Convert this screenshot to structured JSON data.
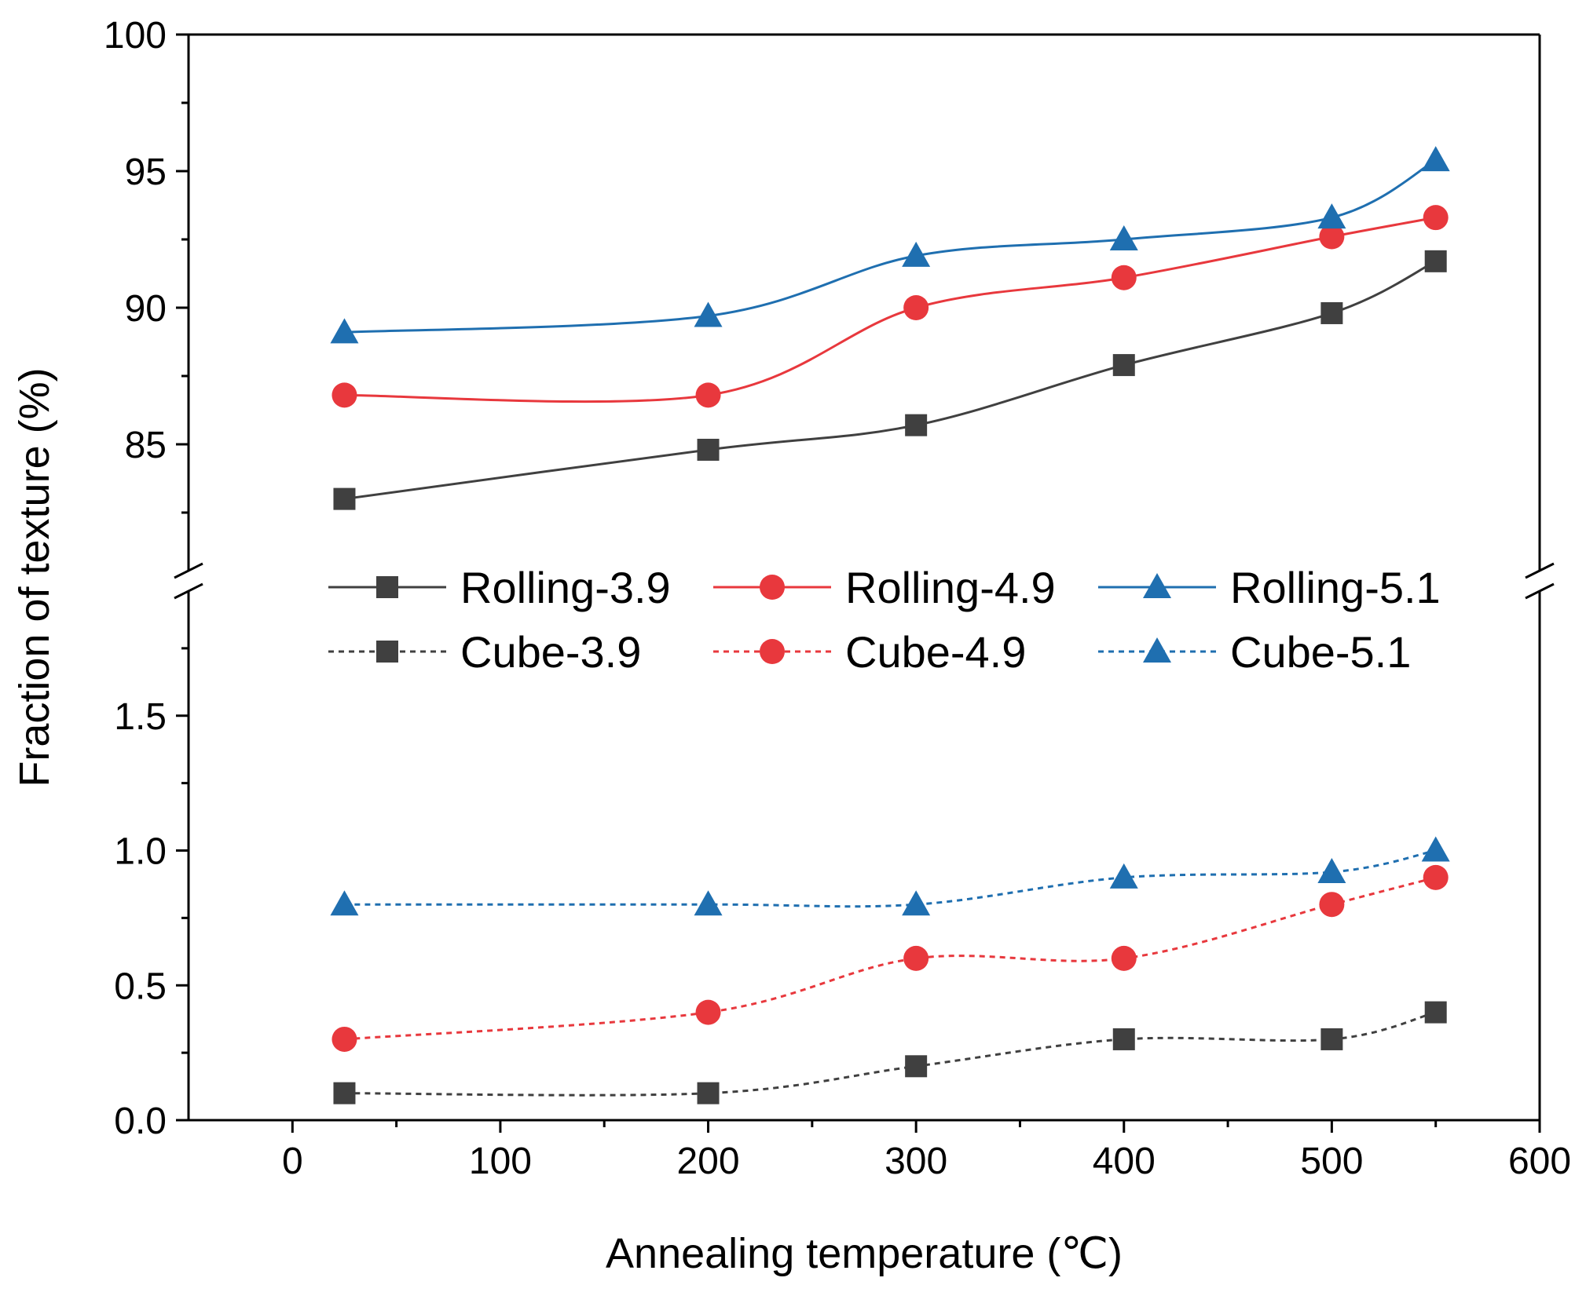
{
  "chart_data": {
    "type": "line",
    "xlabel": "Annealing temperature (℃)",
    "ylabel": "Fraction of texture (%)",
    "xlim": [
      -50,
      600
    ],
    "xticks": [
      "0",
      "100",
      "200",
      "300",
      "400",
      "500",
      "600"
    ],
    "xtick_values": [
      0,
      100,
      200,
      300,
      400,
      500,
      600
    ],
    "y_break": {
      "upper_segment": {
        "ylim": [
          80,
          100
        ],
        "ticks": [
          "85",
          "90",
          "95",
          "100"
        ],
        "tick_values": [
          85,
          90,
          95,
          100
        ]
      },
      "lower_segment": {
        "ylim": [
          0,
          2.0
        ],
        "ticks": [
          "0.0",
          "0.5",
          "1.0",
          "1.5"
        ],
        "tick_values": [
          0,
          0.5,
          1.0,
          1.5
        ]
      }
    },
    "x": [
      25,
      200,
      300,
      400,
      500,
      550
    ],
    "series": [
      {
        "name": "Rolling-3.9",
        "segment": "upper",
        "color": "#404040",
        "marker": "square",
        "line": "solid",
        "values": [
          83.0,
          84.8,
          85.7,
          87.9,
          89.8,
          91.7
        ]
      },
      {
        "name": "Rolling-4.9",
        "segment": "upper",
        "color": "#e8383d",
        "marker": "circle",
        "line": "solid",
        "values": [
          86.8,
          86.8,
          90.0,
          91.1,
          92.6,
          93.3
        ]
      },
      {
        "name": "Rolling-5.1",
        "segment": "upper",
        "color": "#1f6fb0",
        "marker": "triangle",
        "line": "solid",
        "values": [
          89.1,
          89.7,
          91.9,
          92.5,
          93.3,
          95.4
        ]
      },
      {
        "name": "Cube-3.9",
        "segment": "lower",
        "color": "#404040",
        "marker": "square",
        "line": "dotted",
        "values": [
          0.1,
          0.1,
          0.2,
          0.3,
          0.3,
          0.4
        ]
      },
      {
        "name": "Cube-4.9",
        "segment": "lower",
        "color": "#e8383d",
        "marker": "circle",
        "line": "dotted",
        "values": [
          0.3,
          0.4,
          0.6,
          0.6,
          0.8,
          0.9
        ]
      },
      {
        "name": "Cube-5.1",
        "segment": "lower",
        "color": "#1f6fb0",
        "marker": "triangle",
        "line": "dotted",
        "values": [
          0.8,
          0.8,
          0.8,
          0.9,
          0.92,
          1.0
        ]
      }
    ],
    "legend_position": "middle"
  }
}
